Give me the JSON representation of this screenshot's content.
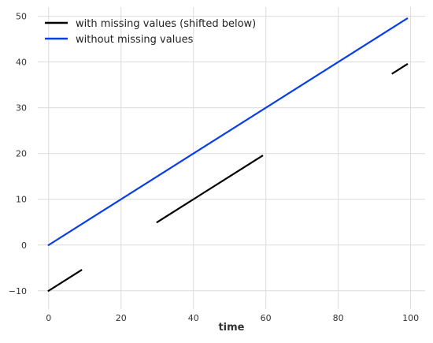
{
  "chart_data": {
    "type": "line",
    "title": "",
    "xlabel": "time",
    "ylabel": "",
    "xlim": [
      -3,
      104
    ],
    "ylim": [
      -14,
      52
    ],
    "x_ticks": [
      0,
      20,
      40,
      60,
      80,
      100
    ],
    "y_ticks": [
      -10,
      0,
      10,
      20,
      30,
      40,
      50
    ],
    "grid": true,
    "legend_position": "top-left",
    "series": [
      {
        "name": "with missing values (shifted below)",
        "color": "#000000",
        "segments": [
          {
            "x": [
              0,
              9
            ],
            "y": [
              -10,
              -5.5
            ]
          },
          {
            "x": [
              30,
              59
            ],
            "y": [
              5,
              19.5
            ]
          },
          {
            "x": [
              95,
              99
            ],
            "y": [
              37.5,
              39.5
            ]
          }
        ]
      },
      {
        "name": "without missing values",
        "color": "#0a3ee6",
        "segments": [
          {
            "x": [
              0,
              99
            ],
            "y": [
              0,
              49.5
            ]
          }
        ]
      }
    ]
  }
}
